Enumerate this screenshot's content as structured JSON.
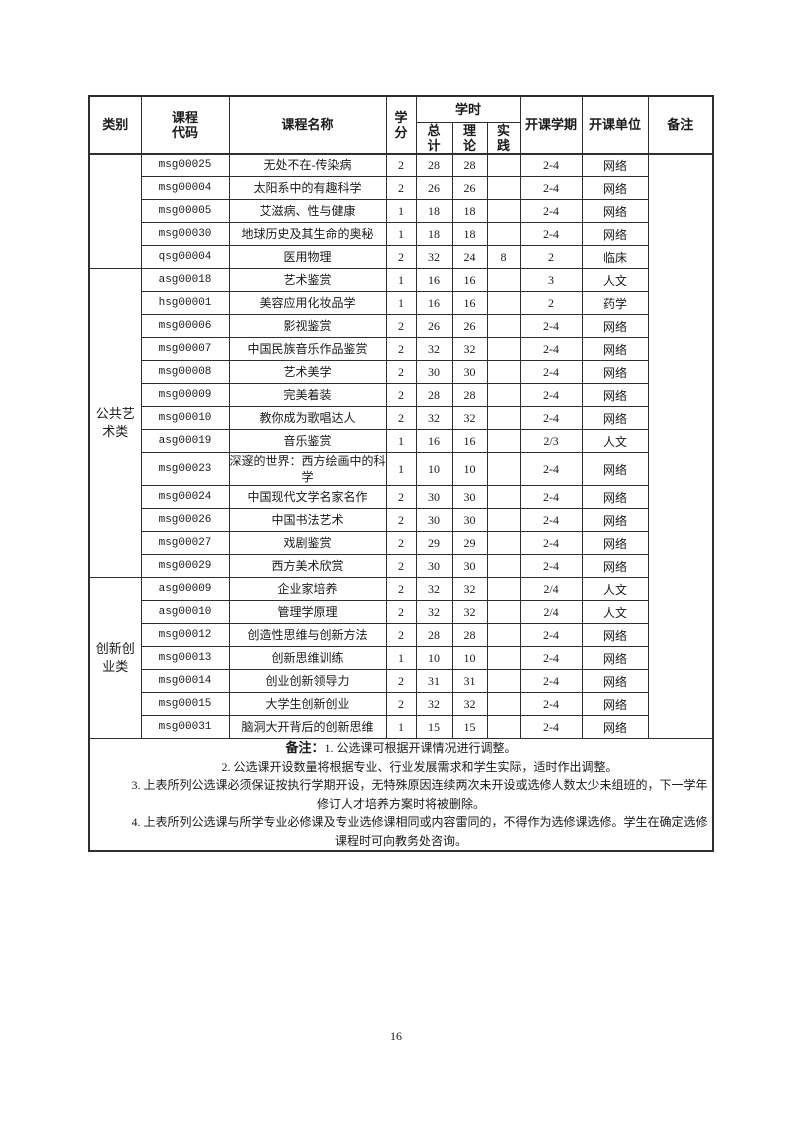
{
  "page": {
    "number": "16"
  },
  "table": {
    "headers": {
      "category": "类别",
      "code": "课程\n代码",
      "name": "课程名称",
      "credits": "学\n分",
      "hours_group": "学时",
      "hours_total": "总\n计",
      "hours_theory": "理\n论",
      "hours_practice": "实\n践",
      "semester": "开课学期",
      "department": "开课单位",
      "remark": "备注"
    },
    "sections": [
      {
        "category": "",
        "rows": [
          {
            "code": "msg00025",
            "name": "无处不在-传染病",
            "credits": "2",
            "total": "28",
            "theory": "28",
            "practice": "",
            "semester": "2-4",
            "department": "网络"
          },
          {
            "code": "msg00004",
            "name": "太阳系中的有趣科学",
            "credits": "2",
            "total": "26",
            "theory": "26",
            "practice": "",
            "semester": "2-4",
            "department": "网络"
          },
          {
            "code": "msg00005",
            "name": "艾滋病、性与健康",
            "credits": "1",
            "total": "18",
            "theory": "18",
            "practice": "",
            "semester": "2-4",
            "department": "网络"
          },
          {
            "code": "msg00030",
            "name": "地球历史及其生命的奥秘",
            "credits": "1",
            "total": "18",
            "theory": "18",
            "practice": "",
            "semester": "2-4",
            "department": "网络"
          },
          {
            "code": "qsg00004",
            "name": "医用物理",
            "credits": "2",
            "total": "32",
            "theory": "24",
            "practice": "8",
            "semester": "2",
            "department": "临床"
          }
        ]
      },
      {
        "category": "公共艺术类",
        "rows": [
          {
            "code": "asg00018",
            "name": "艺术鉴赏",
            "credits": "1",
            "total": "16",
            "theory": "16",
            "practice": "",
            "semester": "3",
            "department": "人文"
          },
          {
            "code": "hsg00001",
            "name": "美容应用化妆品学",
            "credits": "1",
            "total": "16",
            "theory": "16",
            "practice": "",
            "semester": "2",
            "department": "药学"
          },
          {
            "code": "msg00006",
            "name": "影视鉴赏",
            "credits": "2",
            "total": "26",
            "theory": "26",
            "practice": "",
            "semester": "2-4",
            "department": "网络"
          },
          {
            "code": "msg00007",
            "name": "中国民族音乐作品鉴赏",
            "credits": "2",
            "total": "32",
            "theory": "32",
            "practice": "",
            "semester": "2-4",
            "department": "网络"
          },
          {
            "code": "msg00008",
            "name": "艺术美学",
            "credits": "2",
            "total": "30",
            "theory": "30",
            "practice": "",
            "semester": "2-4",
            "department": "网络"
          },
          {
            "code": "msg00009",
            "name": "完美着装",
            "credits": "2",
            "total": "28",
            "theory": "28",
            "practice": "",
            "semester": "2-4",
            "department": "网络"
          },
          {
            "code": "msg00010",
            "name": "教你成为歌唱达人",
            "credits": "2",
            "total": "32",
            "theory": "32",
            "practice": "",
            "semester": "2-4",
            "department": "网络"
          },
          {
            "code": "asg00019",
            "name": "音乐鉴赏",
            "credits": "1",
            "total": "16",
            "theory": "16",
            "practice": "",
            "semester": "2/3",
            "department": "人文"
          },
          {
            "code": "msg00023",
            "name": "深邃的世界：西方绘画中的科学",
            "credits": "1",
            "total": "10",
            "theory": "10",
            "practice": "",
            "semester": "2-4",
            "department": "网络"
          },
          {
            "code": "msg00024",
            "name": "中国现代文学名家名作",
            "credits": "2",
            "total": "30",
            "theory": "30",
            "practice": "",
            "semester": "2-4",
            "department": "网络"
          },
          {
            "code": "msg00026",
            "name": "中国书法艺术",
            "credits": "2",
            "total": "30",
            "theory": "30",
            "practice": "",
            "semester": "2-4",
            "department": "网络"
          },
          {
            "code": "msg00027",
            "name": "戏剧鉴赏",
            "credits": "2",
            "total": "29",
            "theory": "29",
            "practice": "",
            "semester": "2-4",
            "department": "网络"
          },
          {
            "code": "msg00029",
            "name": "西方美术欣赏",
            "credits": "2",
            "total": "30",
            "theory": "30",
            "practice": "",
            "semester": "2-4",
            "department": "网络"
          }
        ]
      },
      {
        "category": "创新创业类",
        "rows": [
          {
            "code": "asg00009",
            "name": "企业家培养",
            "credits": "2",
            "total": "32",
            "theory": "32",
            "practice": "",
            "semester": "2/4",
            "department": "人文"
          },
          {
            "code": "asg00010",
            "name": "管理学原理",
            "credits": "2",
            "total": "32",
            "theory": "32",
            "practice": "",
            "semester": "2/4",
            "department": "人文"
          },
          {
            "code": "msg00012",
            "name": "创造性思维与创新方法",
            "credits": "2",
            "total": "28",
            "theory": "28",
            "practice": "",
            "semester": "2-4",
            "department": "网络"
          },
          {
            "code": "msg00013",
            "name": "创新思维训练",
            "credits": "1",
            "total": "10",
            "theory": "10",
            "practice": "",
            "semester": "2-4",
            "department": "网络"
          },
          {
            "code": "msg00014",
            "name": "创业创新领导力",
            "credits": "2",
            "total": "31",
            "theory": "31",
            "practice": "",
            "semester": "2-4",
            "department": "网络"
          },
          {
            "code": "msg00015",
            "name": "大学生创新创业",
            "credits": "2",
            "total": "32",
            "theory": "32",
            "practice": "",
            "semester": "2-4",
            "department": "网络"
          },
          {
            "code": "msg00031",
            "name": "脑洞大开背后的创新思维",
            "credits": "1",
            "total": "15",
            "theory": "15",
            "practice": "",
            "semester": "2-4",
            "department": "网络"
          }
        ]
      }
    ],
    "notes_label": "备注：",
    "notes": [
      "1. 公选课可根据开课情况进行调整。",
      "2. 公选课开设数量将根据专业、行业发展需求和学生实际，适时作出调整。",
      "3. 上表所列公选课必须保证按执行学期开设，无特殊原因连续两次未开设或选修人数太少未组班的，下一学年修订人才培养方案时将被删除。",
      "4. 上表所列公选课与所学专业必修课及专业选修课相同或内容雷同的，不得作为选修课选修。学生在确定选修课程时可向教务处咨询。"
    ]
  }
}
